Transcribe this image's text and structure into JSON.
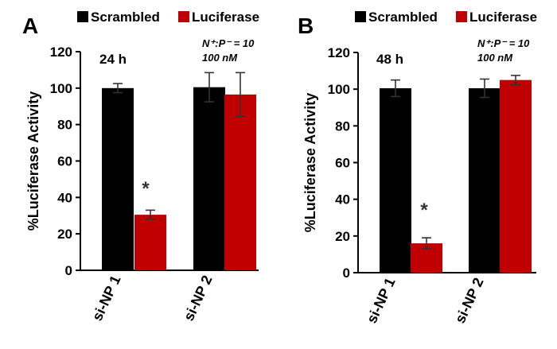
{
  "legend": {
    "scrambled": "Scrambled",
    "luciferase": "Luciferase"
  },
  "colors": {
    "scrambled": "#000000",
    "luciferase": "#c00000",
    "axis": "#000000"
  },
  "chart_data": [
    {
      "type": "bar",
      "panel": "A",
      "annotation": "24 h",
      "note_line1": "N⁺:P⁻ = 10",
      "note_line2": "100 nM",
      "categories": [
        "si-NP 1",
        "si-NP 2"
      ],
      "series": [
        {
          "name": "Scrambled",
          "values": [
            100,
            100.5
          ],
          "errors": [
            2.5,
            8
          ]
        },
        {
          "name": "Luciferase",
          "values": [
            30.5,
            96.5
          ],
          "errors": [
            2.5,
            12
          ]
        }
      ],
      "significance": [
        {
          "category": "si-NP 1",
          "series": "Luciferase",
          "marker": "*"
        }
      ],
      "ylabel": "%Luciferase Activity",
      "ylim": [
        0,
        120
      ],
      "yticks": [
        0,
        20,
        40,
        60,
        80,
        100,
        120
      ],
      "legend_position": "top"
    },
    {
      "type": "bar",
      "panel": "B",
      "annotation": "48 h",
      "note_line1": "N⁺:P⁻ = 10",
      "note_line2": "100 nM",
      "categories": [
        "si-NP 1",
        "si-NP 2"
      ],
      "series": [
        {
          "name": "Scrambled",
          "values": [
            100.5,
            100.5
          ],
          "errors": [
            4.5,
            5
          ]
        },
        {
          "name": "Luciferase",
          "values": [
            16,
            105
          ],
          "errors": [
            3,
            2.5
          ]
        }
      ],
      "significance": [
        {
          "category": "si-NP 1",
          "series": "Luciferase",
          "marker": "*"
        }
      ],
      "ylabel": "%Luciferase Activity",
      "ylim": [
        0,
        120
      ],
      "yticks": [
        0,
        20,
        40,
        60,
        80,
        100,
        120
      ],
      "legend_position": "top"
    }
  ]
}
